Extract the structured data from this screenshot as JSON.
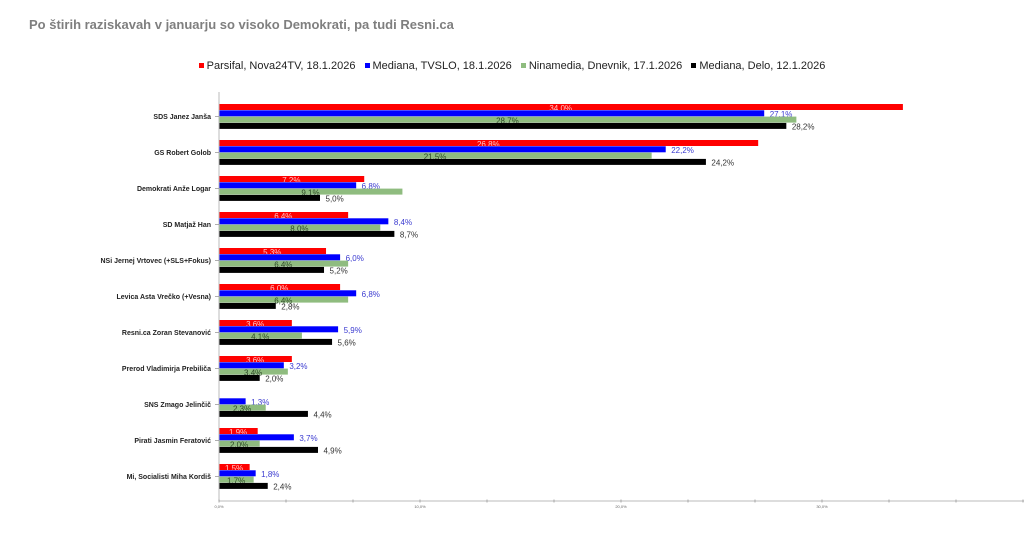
{
  "chart_data": {
    "type": "bar",
    "orientation": "horizontal",
    "title": "Po štirih raziskavah v januarju so visoko Demokrati, pa tudi Resni.ca",
    "xlabel": "",
    "ylabel": "",
    "xlim": [
      0,
      40
    ],
    "x_ticks": [
      "0,0%",
      "10,0%",
      "20,0%",
      "30,0%"
    ],
    "x_tick_values": [
      0,
      10,
      20,
      30
    ],
    "legend_position": "top",
    "categories": [
      "SDS Janez Janša",
      "GS Robert Golob",
      "Demokrati Anže Logar",
      "SD Matjaž Han",
      "NSi Jernej Vrtovec (+SLS+Fokus)",
      "Levica Asta Vrečko (+Vesna)",
      "Resni.ca Zoran Stevanović",
      "Prerod Vladimirja Prebiliča",
      "SNS Zmago Jelinčič",
      "Pirati Jasmin Feratović",
      "Mi, Socialisti Miha Kordiš"
    ],
    "series": [
      {
        "name": "Parsifal, Nova24TV, 18.1.2026",
        "color": "#ff0000",
        "label_color": "#ffc8c8",
        "values": [
          34.0,
          26.8,
          7.2,
          6.4,
          5.3,
          6.0,
          3.6,
          3.6,
          null,
          1.9,
          1.5
        ],
        "labels": [
          "34,0%",
          "26,8%",
          "7,2%",
          "6,4%",
          "5,3%",
          "6,0%",
          "3,6%",
          "3,6%",
          "",
          "1,9%",
          "1,5%"
        ]
      },
      {
        "name": "Mediana, TVSLO, 18.1.2026",
        "color": "#0000ff",
        "label_color": "#3a3ad0",
        "values": [
          27.1,
          22.2,
          6.8,
          8.4,
          6.0,
          6.8,
          5.9,
          3.2,
          1.3,
          3.7,
          1.8
        ],
        "labels": [
          "27,1%",
          "22,2%",
          "6,8%",
          "8,4%",
          "6,0%",
          "6,8%",
          "5,9%",
          "3,2%",
          "1,3%",
          "3,7%",
          "1,8%"
        ]
      },
      {
        "name": "Ninamedia, Dnevnik, 17.1.2026",
        "color": "#8fbc7f",
        "label_color": "#2e4a28",
        "values": [
          28.7,
          21.5,
          9.1,
          8.0,
          6.4,
          6.4,
          4.1,
          3.4,
          2.3,
          2.0,
          1.7
        ],
        "labels": [
          "28,7%",
          "21,5%",
          "9,1%",
          "8,0%",
          "6,4%",
          "6,4%",
          "4,1%",
          "3,4%",
          "2,3%",
          "2,0%",
          "1,7%"
        ]
      },
      {
        "name": "Mediana, Delo, 12.1.2026",
        "color": "#000000",
        "label_color": "#333333",
        "values": [
          28.2,
          24.2,
          5.0,
          8.7,
          5.2,
          2.8,
          5.6,
          2.0,
          4.4,
          4.9,
          2.4
        ],
        "labels": [
          "28,2%",
          "24,2%",
          "5,0%",
          "8,7%",
          "5,2%",
          "2,8%",
          "5,6%",
          "2,0%",
          "4,4%",
          "4,9%",
          "2,4%"
        ]
      }
    ]
  }
}
